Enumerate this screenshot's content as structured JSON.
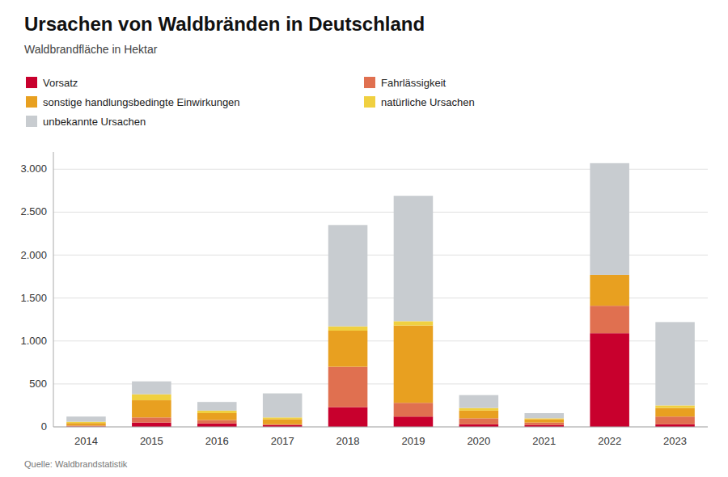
{
  "chart_data": {
    "type": "bar",
    "stacked": true,
    "title": "Ursachen von Waldbränden in Deutschland",
    "subtitle": "Waldbrandfläche in Hektar",
    "source": "Quelle: Waldbrandstatistik",
    "categories": [
      "2014",
      "2015",
      "2016",
      "2017",
      "2018",
      "2019",
      "2020",
      "2021",
      "2022",
      "2023"
    ],
    "series": [
      {
        "name": "Vorsatz",
        "color": "#c8002d",
        "values": [
          5,
          50,
          40,
          20,
          230,
          120,
          30,
          20,
          1090,
          30
        ]
      },
      {
        "name": "Fahrlässigkeit",
        "color": "#e07050",
        "values": [
          10,
          60,
          40,
          10,
          470,
          160,
          70,
          30,
          320,
          90
        ]
      },
      {
        "name": "sonstige handlungsbedingte Einwirkungen",
        "color": "#e8a020",
        "values": [
          30,
          200,
          80,
          60,
          420,
          900,
          90,
          40,
          360,
          100
        ]
      },
      {
        "name": "natürliche Ursachen",
        "color": "#f0d040",
        "values": [
          15,
          70,
          30,
          20,
          50,
          50,
          30,
          10,
          0,
          30
        ]
      },
      {
        "name": "unbekannte Ursachen",
        "color": "#c8ccd0",
        "values": [
          60,
          150,
          100,
          280,
          1180,
          1460,
          150,
          60,
          1300,
          970
        ]
      }
    ],
    "ylim": [
      0,
      3200
    ],
    "yticks": [
      0,
      500,
      {
        "value": 1000,
        "label": "1.000"
      },
      {
        "value": 1500,
        "label": "1.500"
      },
      {
        "value": 2000,
        "label": "2.000"
      },
      {
        "value": 2500,
        "label": "2.500"
      },
      {
        "value": 3000,
        "label": "3.000"
      }
    ],
    "grid": true,
    "legend": "top"
  }
}
